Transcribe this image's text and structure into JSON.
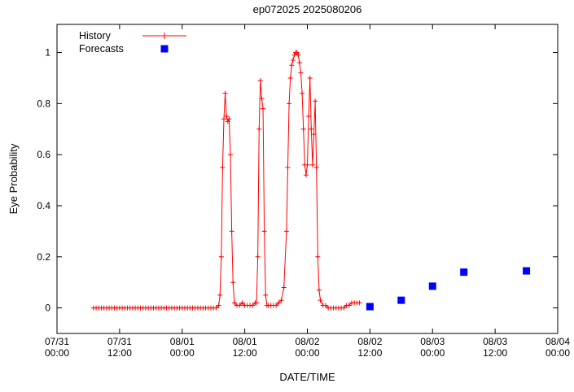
{
  "chart_data": {
    "type": "line",
    "title": "ep072025 2025080206",
    "xlabel": "DATE/TIME",
    "ylabel": "Eye Probability",
    "x_unit": "hours since 07/31 00:00",
    "xlim": [
      0,
      96
    ],
    "ylim": [
      -0.1,
      1.11
    ],
    "grid": false,
    "legend_position": "top-left-inside",
    "x_major_ticks": [
      0,
      12,
      24,
      36,
      48,
      60,
      72,
      84,
      96
    ],
    "x_tick_labels": [
      [
        "07/31",
        "00:00"
      ],
      [
        "07/31",
        "12:00"
      ],
      [
        "08/01",
        "00:00"
      ],
      [
        "08/01",
        "12:00"
      ],
      [
        "08/02",
        "00:00"
      ],
      [
        "08/02",
        "12:00"
      ],
      [
        "08/03",
        "00:00"
      ],
      [
        "08/03",
        "12:00"
      ],
      [
        "08/04",
        "00:00"
      ]
    ],
    "y_ticks": [
      0,
      0.2,
      0.4,
      0.6,
      0.8,
      1
    ],
    "y_tick_labels": [
      "0",
      "0.2",
      "0.4",
      "0.6",
      "0.8",
      "1"
    ],
    "series": [
      {
        "name": "History",
        "type": "line",
        "color": "#ff0000",
        "marker": "plus",
        "points": [
          [
            7,
            0
          ],
          [
            7.5,
            0
          ],
          [
            8,
            0
          ],
          [
            8.5,
            0
          ],
          [
            9,
            0
          ],
          [
            9.5,
            0
          ],
          [
            10,
            0
          ],
          [
            10.5,
            0
          ],
          [
            11,
            0
          ],
          [
            11.5,
            0
          ],
          [
            12,
            0
          ],
          [
            12.5,
            0
          ],
          [
            13,
            0
          ],
          [
            13.5,
            0
          ],
          [
            14,
            0
          ],
          [
            14.5,
            0
          ],
          [
            15,
            0
          ],
          [
            15.5,
            0
          ],
          [
            16,
            0
          ],
          [
            16.5,
            0
          ],
          [
            17,
            0
          ],
          [
            17.5,
            0
          ],
          [
            18,
            0
          ],
          [
            18.5,
            0
          ],
          [
            19,
            0
          ],
          [
            19.5,
            0
          ],
          [
            20,
            0
          ],
          [
            20.5,
            0
          ],
          [
            21,
            0
          ],
          [
            21.5,
            0
          ],
          [
            22,
            0
          ],
          [
            22.5,
            0
          ],
          [
            23,
            0
          ],
          [
            23.5,
            0
          ],
          [
            24,
            0
          ],
          [
            24.5,
            0
          ],
          [
            25,
            0
          ],
          [
            25.5,
            0
          ],
          [
            26,
            0
          ],
          [
            26.5,
            0
          ],
          [
            27,
            0
          ],
          [
            27.5,
            0
          ],
          [
            28,
            0
          ],
          [
            28.5,
            0
          ],
          [
            29,
            0
          ],
          [
            29.5,
            0
          ],
          [
            30,
            0
          ],
          [
            30.5,
            0
          ],
          [
            31,
            0.01
          ],
          [
            31.25,
            0.05
          ],
          [
            31.5,
            0.2
          ],
          [
            31.75,
            0.55
          ],
          [
            32,
            0.74
          ],
          [
            32.25,
            0.84
          ],
          [
            32.5,
            0.75
          ],
          [
            32.75,
            0.73
          ],
          [
            33,
            0.74
          ],
          [
            33.25,
            0.6
          ],
          [
            33.5,
            0.3
          ],
          [
            33.75,
            0.1
          ],
          [
            34,
            0.02
          ],
          [
            34.5,
            0.01
          ],
          [
            35,
            0.01
          ],
          [
            35.5,
            0.02
          ],
          [
            36,
            0.01
          ],
          [
            36.5,
            0.01
          ],
          [
            37,
            0.01
          ],
          [
            37.5,
            0.01
          ],
          [
            38,
            0.02
          ],
          [
            38.25,
            0.02
          ],
          [
            38.5,
            0.2
          ],
          [
            38.75,
            0.7
          ],
          [
            39,
            0.89
          ],
          [
            39.25,
            0.82
          ],
          [
            39.5,
            0.78
          ],
          [
            39.75,
            0.3
          ],
          [
            40,
            0.05
          ],
          [
            40.25,
            0.01
          ],
          [
            40.5,
            0.01
          ],
          [
            41,
            0.01
          ],
          [
            41.5,
            0.01
          ],
          [
            42,
            0.01
          ],
          [
            42.5,
            0.02
          ],
          [
            43,
            0.03
          ],
          [
            43.5,
            0.08
          ],
          [
            44,
            0.3
          ],
          [
            44.25,
            0.55
          ],
          [
            44.5,
            0.8
          ],
          [
            44.75,
            0.9
          ],
          [
            45,
            0.95
          ],
          [
            45.25,
            0.97
          ],
          [
            45.5,
            0.99
          ],
          [
            45.75,
            1.0
          ],
          [
            46,
            1.0
          ],
          [
            46.25,
            0.99
          ],
          [
            46.5,
            0.96
          ],
          [
            46.75,
            0.92
          ],
          [
            47,
            0.84
          ],
          [
            47.25,
            0.7
          ],
          [
            47.5,
            0.56
          ],
          [
            47.75,
            0.52
          ],
          [
            48,
            0.56
          ],
          [
            48.25,
            0.75
          ],
          [
            48.5,
            0.9
          ],
          [
            48.75,
            0.7
          ],
          [
            49,
            0.56
          ],
          [
            49.25,
            0.68
          ],
          [
            49.5,
            0.81
          ],
          [
            49.75,
            0.55
          ],
          [
            50,
            0.2
          ],
          [
            50.25,
            0.07
          ],
          [
            50.5,
            0.03
          ],
          [
            51,
            0.01
          ],
          [
            51.5,
            0.01
          ],
          [
            52,
            0
          ],
          [
            52.5,
            0
          ],
          [
            53,
            0
          ],
          [
            53.5,
            0
          ],
          [
            54,
            0
          ],
          [
            54.5,
            0
          ],
          [
            55,
            0
          ],
          [
            55.5,
            0.01
          ],
          [
            56,
            0.01
          ],
          [
            56.5,
            0.02
          ],
          [
            57,
            0.02
          ],
          [
            57.5,
            0.02
          ],
          [
            58,
            0.02
          ]
        ]
      },
      {
        "name": "Forecasts",
        "type": "scatter",
        "color": "#0000ff",
        "marker": "filled-square",
        "points": [
          [
            60,
            0.005
          ],
          [
            66,
            0.03
          ],
          [
            72,
            0.085
          ],
          [
            78,
            0.14
          ],
          [
            90,
            0.145
          ]
        ]
      }
    ]
  }
}
